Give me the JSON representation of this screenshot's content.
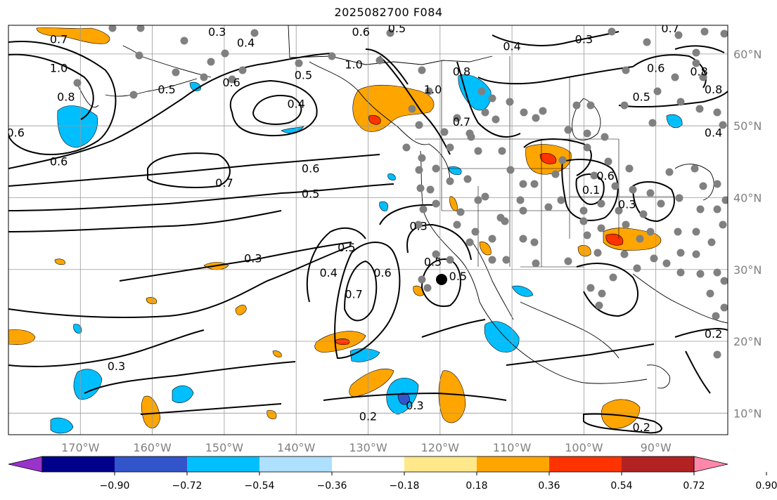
{
  "title": "2025082700 F084",
  "map": {
    "projection": "PlateCarree",
    "extent": {
      "lon_min": -180,
      "lon_max": -80,
      "lat_min": 7,
      "lat_max": 64
    },
    "lon_ticks": [
      {
        "value": -170,
        "label": "170°W"
      },
      {
        "value": -160,
        "label": "160°W"
      },
      {
        "value": -150,
        "label": "150°W"
      },
      {
        "value": -140,
        "label": "140°W"
      },
      {
        "value": -130,
        "label": "130°W"
      },
      {
        "value": -120,
        "label": "120°W"
      },
      {
        "value": -110,
        "label": "110°W"
      },
      {
        "value": -100,
        "label": "100°W"
      },
      {
        "value": -90,
        "label": "90°W"
      }
    ],
    "lat_ticks": [
      {
        "value": 10,
        "label": "10°N"
      },
      {
        "value": 20,
        "label": "20°N"
      },
      {
        "value": 30,
        "label": "30°N"
      },
      {
        "value": 40,
        "label": "40°N"
      },
      {
        "value": 50,
        "label": "50°N"
      },
      {
        "value": 60,
        "label": "60°N"
      }
    ],
    "grid": true,
    "contour_labels": [
      {
        "lon": -173,
        "lat": 62,
        "text": "0.7"
      },
      {
        "lon": -173,
        "lat": 58,
        "text": "1.0"
      },
      {
        "lon": -172,
        "lat": 54,
        "text": "0.8"
      },
      {
        "lon": -179,
        "lat": 49,
        "text": "0.6"
      },
      {
        "lon": -173,
        "lat": 45,
        "text": "0.6"
      },
      {
        "lon": -151,
        "lat": 63,
        "text": "0.3"
      },
      {
        "lon": -147,
        "lat": 61.5,
        "text": "0.4"
      },
      {
        "lon": -158,
        "lat": 55,
        "text": "0.5"
      },
      {
        "lon": -149,
        "lat": 56,
        "text": "0.6"
      },
      {
        "lon": -139,
        "lat": 57,
        "text": "0.5"
      },
      {
        "lon": -140,
        "lat": 53,
        "text": "0.4"
      },
      {
        "lon": -150,
        "lat": 42,
        "text": "0.7"
      },
      {
        "lon": -138,
        "lat": 40.5,
        "text": "0.5"
      },
      {
        "lon": -138,
        "lat": 44,
        "text": "0.6"
      },
      {
        "lon": -131,
        "lat": 63,
        "text": "0.6"
      },
      {
        "lon": -126,
        "lat": 63.5,
        "text": "0.5"
      },
      {
        "lon": -132,
        "lat": 58.5,
        "text": "1.0"
      },
      {
        "lon": -121,
        "lat": 55,
        "text": "1.0"
      },
      {
        "lon": -117,
        "lat": 57.5,
        "text": "0.8"
      },
      {
        "lon": -110,
        "lat": 61,
        "text": "0.4"
      },
      {
        "lon": -100,
        "lat": 62,
        "text": "0.3"
      },
      {
        "lon": -117,
        "lat": 50.5,
        "text": "0.7"
      },
      {
        "lon": -90,
        "lat": 58,
        "text": "0.6"
      },
      {
        "lon": -84,
        "lat": 57.5,
        "text": "0.8"
      },
      {
        "lon": -88,
        "lat": 63.5,
        "text": "0.7"
      },
      {
        "lon": -92,
        "lat": 54,
        "text": "0.5"
      },
      {
        "lon": -82,
        "lat": 49,
        "text": "0.4"
      },
      {
        "lon": -82,
        "lat": 55,
        "text": "0.8"
      },
      {
        "lon": -97,
        "lat": 43,
        "text": "0.6"
      },
      {
        "lon": -99,
        "lat": 41,
        "text": "0.1"
      },
      {
        "lon": -94,
        "lat": 39,
        "text": "0.3"
      },
      {
        "lon": -146,
        "lat": 31.5,
        "text": "0.3"
      },
      {
        "lon": -135.5,
        "lat": 29.5,
        "text": "0.4"
      },
      {
        "lon": -133,
        "lat": 33,
        "text": "0.5"
      },
      {
        "lon": -132,
        "lat": 26.5,
        "text": "0.7"
      },
      {
        "lon": -128,
        "lat": 29.5,
        "text": "0.6"
      },
      {
        "lon": -123,
        "lat": 36,
        "text": "0.3"
      },
      {
        "lon": -121,
        "lat": 31,
        "text": "0.5"
      },
      {
        "lon": -117.5,
        "lat": 29,
        "text": "0.5"
      },
      {
        "lon": -165,
        "lat": 16.5,
        "text": "0.3"
      },
      {
        "lon": -130,
        "lat": 9.5,
        "text": "0.2"
      },
      {
        "lon": -123.5,
        "lat": 11,
        "text": "0.3"
      },
      {
        "lon": -92,
        "lat": 8,
        "text": "0.2"
      },
      {
        "lon": -82,
        "lat": 21,
        "text": "0.2"
      }
    ]
  },
  "colorbar": {
    "colors": [
      "#9933cc",
      "#00008b",
      "#3355cc",
      "#00bfff",
      "#aee0ff",
      "#ffffff",
      "#ffe88a",
      "#ffa500",
      "#ff3300",
      "#b22222",
      "#ff88aa"
    ],
    "tick_labels": [
      "−0.90",
      "−0.72",
      "−0.54",
      "−0.36",
      "−0.18",
      "0.18",
      "0.36",
      "0.54",
      "0.72",
      "0.90"
    ],
    "extend": "both"
  },
  "colors": {
    "positive_fill": "#ffa500",
    "positive_strong": "#ff3300",
    "negative_fill": "#00bfff",
    "negative_strong": "#3355cc",
    "station_dot": "#808080",
    "grid": "#999999",
    "contour": "#000000",
    "coastline": "#000000"
  }
}
